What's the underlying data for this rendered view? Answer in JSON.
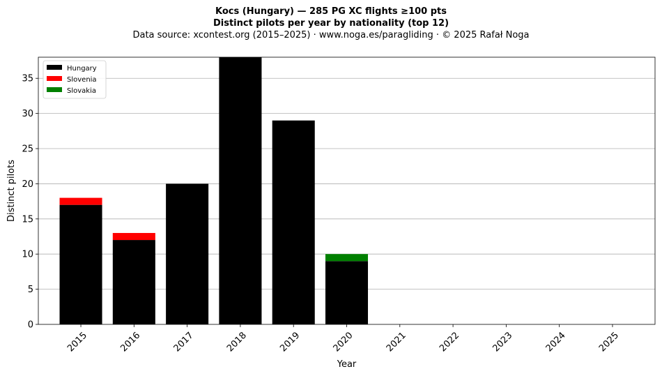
{
  "chart_data": {
    "type": "bar",
    "stacked": true,
    "title": "Kocs (Hungary)  —  285 PG XC flights ≥100 pts",
    "subtitle": "Distinct pilots per year by nationality (top 12)",
    "source": "Data source: xcontest.org (2015–2025)  ·  www.noga.es/paragliding  ·  © 2025 Rafał Noga",
    "xlabel": "Year",
    "ylabel": "Distinct pilots",
    "ylim": [
      0,
      38
    ],
    "yticks": [
      0,
      5,
      10,
      15,
      20,
      25,
      30,
      35
    ],
    "grid": "y",
    "legend_position": "top-left",
    "categories": [
      "2015",
      "2016",
      "2017",
      "2018",
      "2019",
      "2020",
      "2021",
      "2022",
      "2023",
      "2024",
      "2025"
    ],
    "series": [
      {
        "name": "Hungary",
        "color": "#000000",
        "values": [
          17,
          12,
          20,
          38,
          29,
          9,
          0,
          0,
          0,
          0,
          0
        ]
      },
      {
        "name": "Slovenia",
        "color": "#ff0000",
        "values": [
          1,
          1,
          0,
          0,
          0,
          0,
          0,
          0,
          0,
          0,
          0
        ]
      },
      {
        "name": "Slovakia",
        "color": "#008000",
        "values": [
          0,
          0,
          0,
          0,
          0,
          1,
          0,
          0,
          0,
          0,
          0
        ]
      }
    ]
  }
}
